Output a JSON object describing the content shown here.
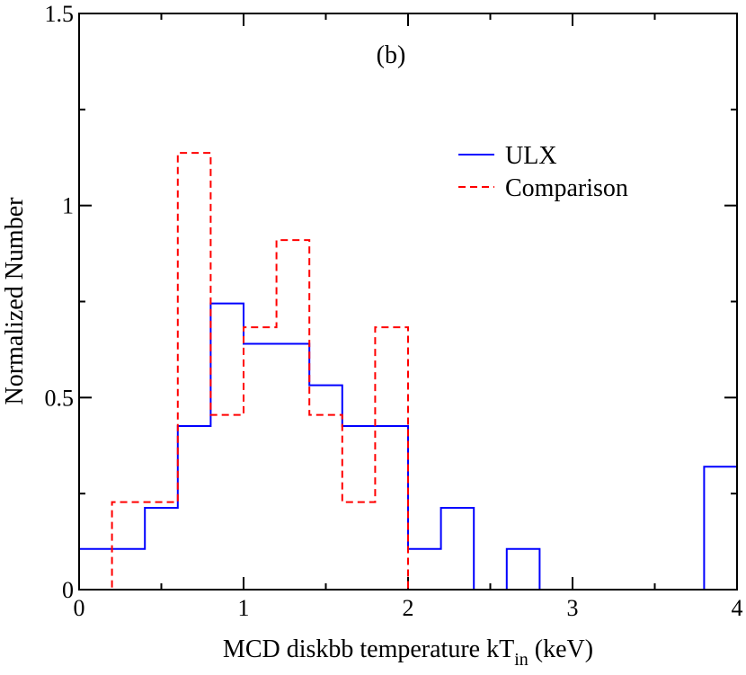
{
  "chart_data": {
    "type": "step-histogram",
    "panel_label": "(b)",
    "xlabel": {
      "prefix": "MCD diskbb temperature kT",
      "subscript": "in",
      "suffix": " (keV)"
    },
    "ylabel": "Normalized Number",
    "xlim": [
      0,
      4
    ],
    "ylim": [
      0,
      1.5
    ],
    "x_ticks": [
      {
        "value": 0,
        "label": "0"
      },
      {
        "value": 1,
        "label": "1"
      },
      {
        "value": 2,
        "label": "2"
      },
      {
        "value": 3,
        "label": "3"
      },
      {
        "value": 4,
        "label": "4"
      }
    ],
    "y_ticks": [
      {
        "value": 0,
        "label": "0"
      },
      {
        "value": 0.5,
        "label": "0.5"
      },
      {
        "value": 1,
        "label": "1"
      },
      {
        "value": 1.5,
        "label": "1.5"
      }
    ],
    "bin_edges": [
      0,
      0.2,
      0.4,
      0.6,
      0.8,
      1.0,
      1.2,
      1.4,
      1.6,
      1.8,
      2.0,
      2.2,
      2.4,
      2.6,
      2.8,
      3.0,
      3.2,
      3.4,
      3.6,
      3.8,
      4.0
    ],
    "series": [
      {
        "name": "ULX",
        "color": "#0000ff",
        "dash": "solid",
        "values": [
          0.106,
          0.106,
          0.213,
          0.426,
          0.745,
          0.64,
          0.64,
          0.532,
          0.426,
          0.426,
          0.106,
          0.213,
          0,
          0.106,
          0,
          0,
          0,
          0,
          0,
          0.32
        ]
      },
      {
        "name": "Comparison",
        "color": "#ff0000",
        "dash": "dashed",
        "values": [
          0,
          0.228,
          0.228,
          1.137,
          0.455,
          0.683,
          0.91,
          0.455,
          0.228,
          0.683,
          0,
          0,
          0,
          0,
          0,
          0,
          0,
          0,
          0,
          0
        ]
      }
    ],
    "legend": {
      "position": "top-right"
    }
  }
}
